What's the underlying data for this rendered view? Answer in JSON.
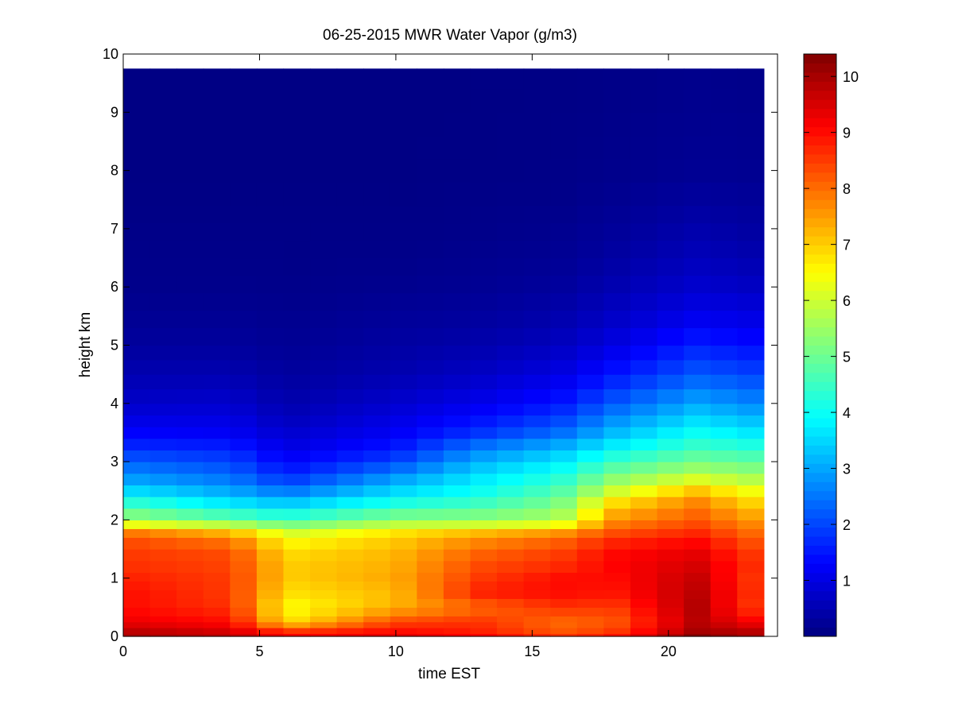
{
  "chart_data": {
    "type": "heatmap",
    "title": "06-25-2015 MWR Water Vapor (g/m3)",
    "xlabel": "time EST",
    "ylabel": "height km",
    "xlim": [
      0,
      24
    ],
    "ylim": [
      0,
      10
    ],
    "x_ticks": [
      0,
      5,
      10,
      15,
      20
    ],
    "y_ticks": [
      0,
      1,
      2,
      3,
      4,
      5,
      6,
      7,
      8,
      9,
      10
    ],
    "colorbar": {
      "range": [
        0,
        10.4
      ],
      "ticks": [
        1,
        2,
        3,
        4,
        5,
        6,
        7,
        8,
        9,
        10
      ],
      "colormap": "jet"
    },
    "grid": false,
    "data_extent": {
      "time_end": 23.5,
      "height_top": 9.75
    },
    "times": [
      0,
      1,
      2,
      3,
      4,
      5,
      6,
      7,
      8,
      9,
      10,
      11,
      12,
      13,
      14,
      15,
      16,
      17,
      18,
      19,
      20,
      21,
      22,
      23
    ],
    "profiles": {
      "heights": [
        0,
        0.1,
        0.25,
        0.5,
        0.75,
        1.0,
        1.25,
        1.5,
        1.75,
        2.0,
        2.25,
        2.5,
        2.75,
        3.0,
        3.25,
        3.5,
        3.75,
        4.0,
        4.5,
        5.0,
        5.5,
        6.0,
        6.5,
        7.0,
        7.5,
        8.0,
        9.75
      ],
      "by_time": {
        "0": [
          10.0,
          9.8,
          9.3,
          9.0,
          9.0,
          8.8,
          8.6,
          8.5,
          8.2,
          5.6,
          4.6,
          3.6,
          2.8,
          2.3,
          1.7,
          1.3,
          1.0,
          0.75,
          0.5,
          0.3,
          0.2,
          0.12,
          0.1,
          0.08,
          0.06,
          0.05,
          0.04
        ],
        "4": [
          9.8,
          9.5,
          9.0,
          8.6,
          8.5,
          8.5,
          8.4,
          8.3,
          7.5,
          5.0,
          3.8,
          3.0,
          2.4,
          2.0,
          1.6,
          1.2,
          1.0,
          0.8,
          0.5,
          0.3,
          0.2,
          0.12,
          0.1,
          0.08,
          0.06,
          0.05,
          0.04
        ],
        "6": [
          9.3,
          8.5,
          6.8,
          6.4,
          6.8,
          7.0,
          7.0,
          6.8,
          6.2,
          4.6,
          3.5,
          2.5,
          1.7,
          1.3,
          1.0,
          0.8,
          0.6,
          0.45,
          0.3,
          0.2,
          0.15,
          0.1,
          0.08,
          0.07,
          0.06,
          0.05,
          0.04
        ],
        "10": [
          9.5,
          9.0,
          8.4,
          7.3,
          7.2,
          7.4,
          7.3,
          7.2,
          6.9,
          5.4,
          4.3,
          3.5,
          2.8,
          2.0,
          1.5,
          1.2,
          1.0,
          0.8,
          0.5,
          0.35,
          0.25,
          0.15,
          0.1,
          0.08,
          0.06,
          0.05,
          0.04
        ],
        "13": [
          9.2,
          8.8,
          8.6,
          8.0,
          8.8,
          8.5,
          8.3,
          8.0,
          7.4,
          5.4,
          4.6,
          4.0,
          3.6,
          3.1,
          2.5,
          1.8,
          1.4,
          1.1,
          0.7,
          0.45,
          0.3,
          0.2,
          0.15,
          0.1,
          0.08,
          0.06,
          0.05
        ],
        "16": [
          8.7,
          8.2,
          8.0,
          8.6,
          9.0,
          9.0,
          8.6,
          8.4,
          7.8,
          5.7,
          5.2,
          4.7,
          4.2,
          3.7,
          3.1,
          2.4,
          1.9,
          1.5,
          1.0,
          0.65,
          0.45,
          0.3,
          0.2,
          0.15,
          0.1,
          0.08,
          0.06
        ],
        "18": [
          9.0,
          8.5,
          8.2,
          8.5,
          8.9,
          9.0,
          9.1,
          9.0,
          8.4,
          7.6,
          7.0,
          6.0,
          5.2,
          4.5,
          3.8,
          3.2,
          2.7,
          2.2,
          1.5,
          1.0,
          0.7,
          0.5,
          0.35,
          0.25,
          0.18,
          0.12,
          0.08
        ],
        "21": [
          10.4,
          10.0,
          9.8,
          9.9,
          9.8,
          9.7,
          9.5,
          9.3,
          8.8,
          8.2,
          7.9,
          7.1,
          5.9,
          5.1,
          4.5,
          4.0,
          3.5,
          3.0,
          2.2,
          1.6,
          1.1,
          0.8,
          0.6,
          0.45,
          0.3,
          0.2,
          0.12
        ],
        "23": [
          10.0,
          9.8,
          9.2,
          8.6,
          8.7,
          8.6,
          8.7,
          8.5,
          8.1,
          7.6,
          7.1,
          6.4,
          5.6,
          4.9,
          4.3,
          3.7,
          3.2,
          2.7,
          2.0,
          1.4,
          1.0,
          0.7,
          0.5,
          0.35,
          0.25,
          0.18,
          0.1
        ]
      }
    }
  }
}
